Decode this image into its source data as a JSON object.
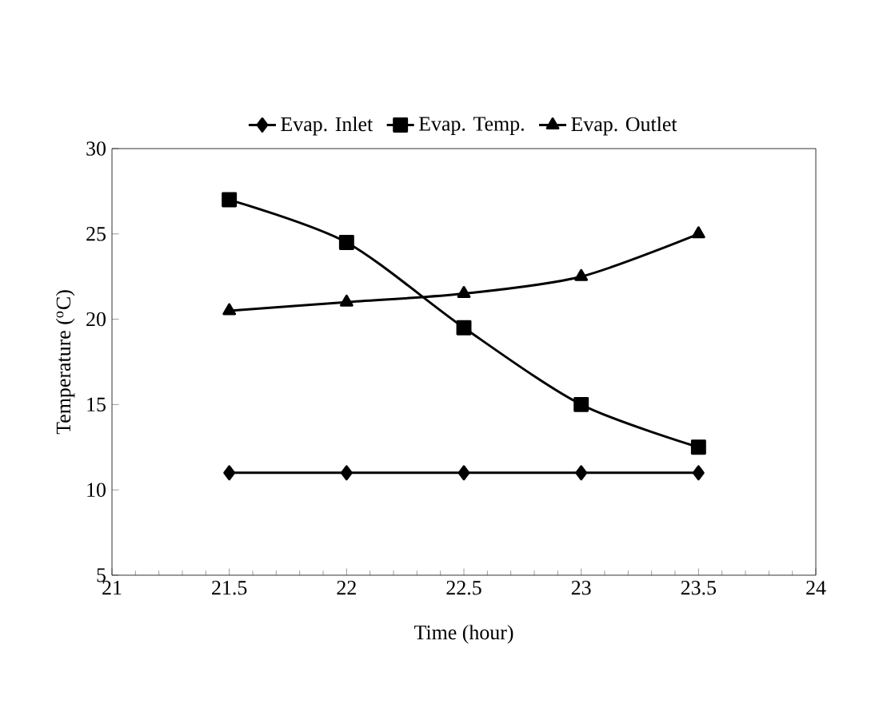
{
  "chart_data": {
    "type": "line",
    "xlabel": "Time (hour)",
    "ylabel": "Temperature ($^{o}$C)",
    "x": [
      21.5,
      22,
      22.5,
      23,
      23.5
    ],
    "series": [
      {
        "name": "Evap. Inlet",
        "color": "#000000",
        "marker": "diamond",
        "values": [
          11,
          11,
          11,
          11,
          11
        ]
      },
      {
        "name": "Evap. Temp.",
        "color": "#000000",
        "marker": "square",
        "values": [
          27,
          24.5,
          19.5,
          15,
          12.5
        ]
      },
      {
        "name": "Evap. Outlet",
        "color": "#000000",
        "marker": "triangle",
        "values": [
          20.5,
          21,
          21.5,
          22.5,
          25
        ]
      }
    ],
    "xlim": [
      21,
      24
    ],
    "xticks": [
      21,
      21.5,
      22,
      22.5,
      23,
      23.5,
      24
    ],
    "ylim": [
      5,
      30
    ],
    "yticks": [
      5,
      10,
      15,
      20,
      25,
      30
    ],
    "grid": false,
    "legend": "top",
    "line_style": "solid"
  }
}
